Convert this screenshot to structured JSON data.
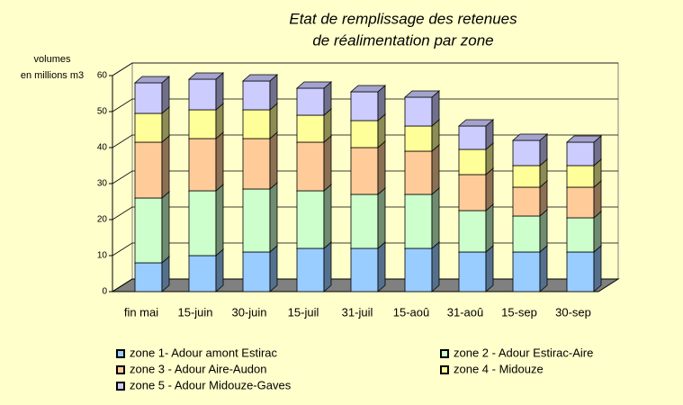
{
  "chart_data": {
    "type": "bar3d_stacked",
    "title": [
      "Etat de remplissage des retenues",
      "de réalimentation par zone"
    ],
    "y_label": [
      "volumes",
      "en millions m3"
    ],
    "categories": [
      "fin mai",
      "15-juin",
      "30-juin",
      "15-juil",
      "31-juil",
      "15-aoû",
      "31-aoû",
      "15-sep",
      "30-sep"
    ],
    "series": [
      {
        "name": "zone 1- Adour amont Estirac",
        "color": "#99ccff",
        "values": [
          8,
          10,
          11,
          12,
          12,
          12,
          11,
          11,
          11
        ]
      },
      {
        "name": "zone 2 - Adour Estirac-Aire",
        "color": "#ccffcc",
        "values": [
          18,
          18,
          17.5,
          16,
          15,
          15,
          11.5,
          10,
          9.5
        ]
      },
      {
        "name": "zone 3 - Adour Aire-Audon",
        "color": "#ffcc99",
        "values": [
          15.5,
          14.5,
          14,
          13.5,
          13,
          12,
          10,
          8,
          8.5
        ]
      },
      {
        "name": "zone 4 - Midouze",
        "color": "#ffff99",
        "values": [
          8,
          8,
          8,
          7.5,
          7.5,
          7,
          7,
          6,
          6
        ]
      },
      {
        "name": "zone 5 - Adour Midouze-Gaves",
        "color": "#ccccff",
        "values": [
          8.5,
          8.5,
          8,
          7.5,
          8,
          8,
          6.5,
          7,
          6.5
        ]
      }
    ],
    "ylim": [
      0,
      60
    ],
    "yticks": [
      0,
      10,
      20,
      30,
      40,
      50,
      60
    ],
    "grid": true
  }
}
